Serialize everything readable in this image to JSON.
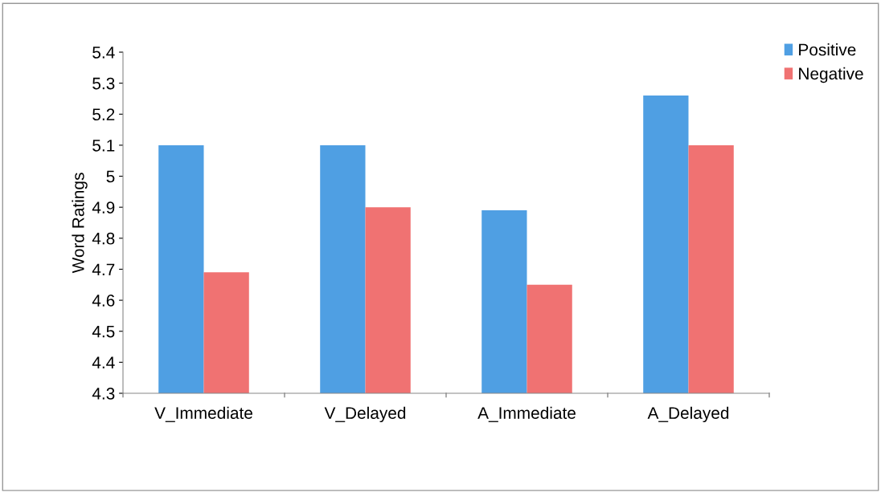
{
  "chart_data": {
    "type": "bar",
    "ylabel": "Word Ratings",
    "categories": [
      "V_Immediate",
      "V_Delayed",
      "A_Immediate",
      "A_Delayed"
    ],
    "series": [
      {
        "name": "Positive",
        "color": "#4f9fe3",
        "values": [
          5.1,
          5.1,
          4.89,
          5.26
        ]
      },
      {
        "name": "Negative",
        "color": "#f07272",
        "values": [
          4.69,
          4.9,
          4.65,
          5.1
        ]
      }
    ],
    "ylim": [
      4.3,
      5.4
    ],
    "yticks": [
      4.3,
      4.4,
      4.5,
      4.6,
      4.7,
      4.8,
      4.9,
      5,
      5.1,
      5.2,
      5.3,
      5.4
    ],
    "grid": false,
    "legend": "top right"
  }
}
